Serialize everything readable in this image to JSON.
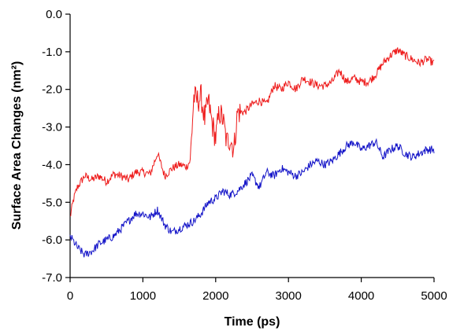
{
  "chart_data": {
    "type": "line",
    "xlabel": "Time (ps)",
    "ylabel": "Surface Area Changes (nm²)",
    "xlim": [
      0,
      5000
    ],
    "ylim": [
      -7.0,
      0.0
    ],
    "x_ticks": [
      "0",
      "1000",
      "2000",
      "3000",
      "4000",
      "5000"
    ],
    "y_ticks": [
      "0.0",
      "-1.0",
      "-2.0",
      "-3.0",
      "-4.0",
      "-5.0",
      "-6.0",
      "-7.0"
    ],
    "grid": false,
    "legend": "none",
    "series": [
      {
        "color": "#ee1c1c",
        "x": [
          0,
          50,
          100,
          200,
          300,
          400,
          500,
          600,
          700,
          800,
          900,
          1000,
          1100,
          1200,
          1300,
          1400,
          1500,
          1600,
          1650,
          1700,
          1750,
          1800,
          1850,
          1900,
          1950,
          2000,
          2050,
          2100,
          2150,
          2200,
          2250,
          2300,
          2400,
          2500,
          2600,
          2700,
          2800,
          2900,
          3000,
          3100,
          3200,
          3300,
          3400,
          3500,
          3600,
          3700,
          3800,
          3900,
          4000,
          4100,
          4200,
          4300,
          4400,
          4500,
          4600,
          4700,
          4800,
          4900,
          5000
        ],
        "y": [
          -5.4,
          -4.9,
          -4.6,
          -4.3,
          -4.4,
          -4.3,
          -4.45,
          -4.25,
          -4.3,
          -4.4,
          -4.2,
          -4.2,
          -4.25,
          -3.7,
          -4.3,
          -4.1,
          -4.0,
          -4.05,
          -3.9,
          -2.2,
          -2.3,
          -2.2,
          -2.8,
          -2.3,
          -2.9,
          -3.3,
          -2.6,
          -2.8,
          -3.4,
          -3.3,
          -3.6,
          -2.6,
          -2.6,
          -2.4,
          -2.3,
          -2.4,
          -1.9,
          -2.0,
          -1.8,
          -2.0,
          -1.7,
          -1.8,
          -1.9,
          -1.9,
          -1.8,
          -1.5,
          -1.8,
          -1.7,
          -1.8,
          -1.8,
          -1.6,
          -1.3,
          -1.1,
          -0.95,
          -1.1,
          -1.2,
          -1.3,
          -1.2,
          -1.3
        ]
      },
      {
        "color": "#1414c8",
        "x": [
          0,
          100,
          200,
          300,
          400,
          500,
          600,
          700,
          800,
          900,
          1000,
          1100,
          1200,
          1300,
          1400,
          1500,
          1600,
          1700,
          1800,
          1900,
          2000,
          2100,
          2200,
          2300,
          2400,
          2500,
          2600,
          2700,
          2800,
          2900,
          3000,
          3100,
          3200,
          3300,
          3400,
          3500,
          3600,
          3700,
          3800,
          3900,
          4000,
          4100,
          4200,
          4300,
          4400,
          4500,
          4600,
          4700,
          4800,
          4900,
          5000
        ],
        "y": [
          -5.9,
          -6.2,
          -6.4,
          -6.3,
          -6.1,
          -6.0,
          -5.9,
          -5.7,
          -5.5,
          -5.3,
          -5.3,
          -5.4,
          -5.2,
          -5.6,
          -5.8,
          -5.7,
          -5.6,
          -5.5,
          -5.3,
          -5.0,
          -4.9,
          -4.7,
          -4.8,
          -4.7,
          -4.5,
          -4.3,
          -4.6,
          -4.2,
          -4.3,
          -4.1,
          -4.2,
          -4.3,
          -4.2,
          -4.0,
          -3.9,
          -4.0,
          -3.9,
          -3.7,
          -3.5,
          -3.4,
          -3.6,
          -3.5,
          -3.4,
          -3.8,
          -3.6,
          -3.5,
          -3.7,
          -3.8,
          -3.7,
          -3.6,
          -3.6
        ]
      }
    ]
  }
}
